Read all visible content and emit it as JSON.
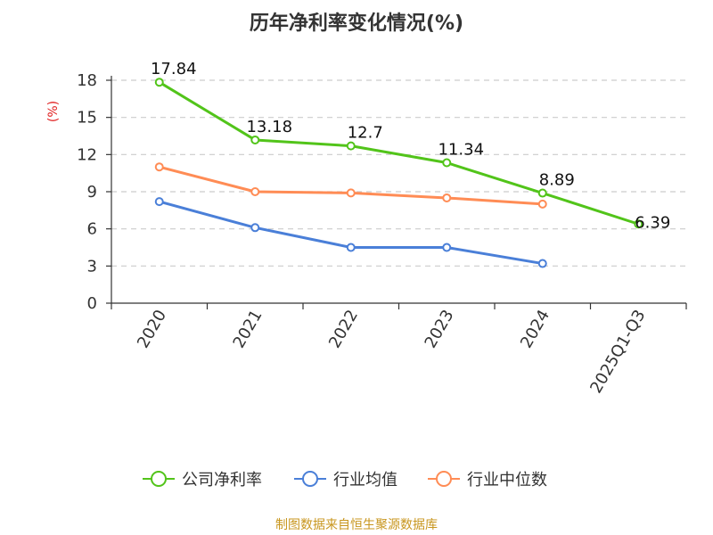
{
  "title": "历年净利率变化情况(%)",
  "footer": "制图数据来自恒生聚源数据库",
  "chart_data": {
    "type": "line",
    "title": "历年净利率变化情况(%)",
    "ylabel": "(%)",
    "xlabel": "",
    "categories": [
      "2020",
      "2021",
      "2022",
      "2023",
      "2024",
      "2025Q1-Q3"
    ],
    "ylim": [
      0,
      18
    ],
    "yticks": [
      0,
      3,
      6,
      9,
      12,
      15,
      18
    ],
    "grid": true,
    "legend_position": "bottom",
    "series": [
      {
        "name": "公司净利率",
        "color": "#52c41a",
        "values": [
          17.84,
          13.18,
          12.7,
          11.34,
          8.89,
          6.39
        ],
        "labels": [
          "17.84",
          "13.18",
          "12.7",
          "11.34",
          "8.89",
          "6.39"
        ]
      },
      {
        "name": "行业均值",
        "color": "#4a7fd8",
        "values": [
          8.2,
          6.1,
          4.5,
          4.5,
          3.2,
          null
        ]
      },
      {
        "name": "行业中位数",
        "color": "#ff8c55",
        "values": [
          11.0,
          9.0,
          8.9,
          8.5,
          8.0,
          null
        ]
      }
    ],
    "ylabel_color": "#e02020"
  }
}
